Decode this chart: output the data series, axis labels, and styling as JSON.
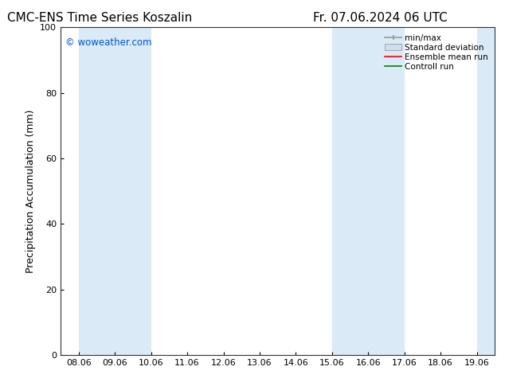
{
  "title_left": "CMC-ENS Time Series Koszalin",
  "title_right": "Fr. 07.06.2024 06 UTC",
  "ylabel": "Precipitation Accumulation (mm)",
  "ylim": [
    0,
    100
  ],
  "yticks": [
    0,
    20,
    40,
    60,
    80,
    100
  ],
  "xlabels": [
    "08.06",
    "09.06",
    "10.06",
    "11.06",
    "12.06",
    "13.06",
    "14.06",
    "15.06",
    "16.06",
    "17.06",
    "18.06",
    "19.06"
  ],
  "watermark": "© woweather.com",
  "watermark_color": "#0055cc",
  "bg_color": "#ffffff",
  "plot_bg_color": "#ffffff",
  "minmax_color": "#999999",
  "stddev_color": "#ccdff0",
  "mean_color": "#ff0000",
  "control_color": "#008000",
  "band_color": "#daeaf7",
  "band_ranges": [
    [
      0,
      2
    ],
    [
      7,
      9
    ],
    [
      11,
      12
    ]
  ],
  "title_fontsize": 11,
  "label_fontsize": 9,
  "tick_fontsize": 8,
  "legend_fontsize": 7.5
}
